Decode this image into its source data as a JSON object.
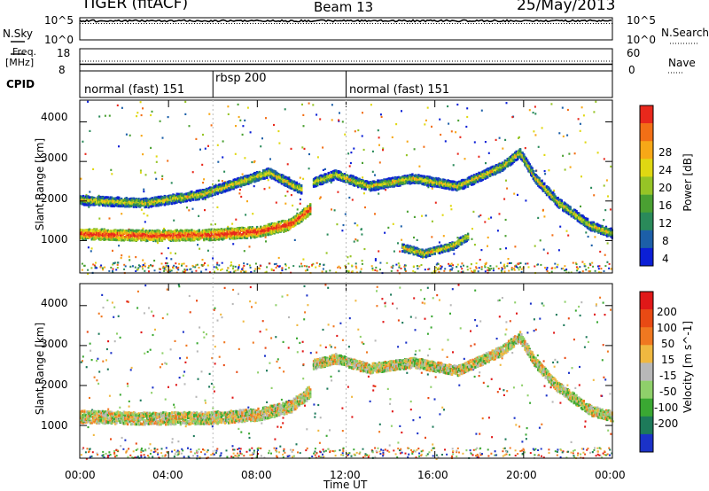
{
  "header": {
    "station": "TIGER (fitACF)",
    "beam": "Beam 13",
    "date": "25/May/2013"
  },
  "panels": {
    "nsky": {
      "label": "N.Sky",
      "ticks": [
        "10^5",
        "10^0"
      ]
    },
    "nsearch": {
      "label": "N.Search",
      "ticks": [
        "10^5",
        "10^0"
      ]
    },
    "freq": {
      "label_top": "Freq.",
      "label_unit": "[MHz]",
      "ticks": [
        "18",
        "8"
      ]
    },
    "nave": {
      "label": "Nave",
      "ticks": [
        "60",
        "0"
      ]
    },
    "cpid": {
      "label": "CPID",
      "segments": [
        {
          "text": "normal (fast) 151",
          "start": "00:00"
        },
        {
          "text": "rbsp 200",
          "start": "06:00"
        },
        {
          "text": "normal (fast) 151",
          "start": "12:00"
        }
      ]
    }
  },
  "chart_data": [
    {
      "type": "heatmap",
      "quantity": "Power",
      "ylabel": "Slant Range [km]",
      "ylim": [
        180,
        4550
      ],
      "yticks": [
        1000,
        2000,
        3000,
        4000
      ],
      "xlim": [
        "00:00",
        "24:00"
      ],
      "colorbar": {
        "label": "Power [dB]",
        "ticks": [
          "28",
          "24",
          "20",
          "16",
          "12",
          "8",
          "4"
        ],
        "colors": [
          "#0b1fd6",
          "#1c5fa8",
          "#2a8a5a",
          "#4aa032",
          "#96c426",
          "#e0d812",
          "#f7a817",
          "#f26f16",
          "#e8281c"
        ]
      },
      "bands": [
        {
          "t": [
            0.0,
            3.0,
            6.0,
            8.0,
            9.5,
            10.4
          ],
          "r": [
            1200,
            1150,
            1180,
            1250,
            1450,
            1850
          ],
          "w": 130,
          "level": 0.7
        },
        {
          "t": [
            0.0,
            3.0,
            5.5,
            8.5,
            10.0
          ],
          "r": [
            2050,
            1980,
            2200,
            2750,
            2300
          ],
          "w": 110,
          "level": 0.35
        },
        {
          "t": [
            10.5,
            11.5,
            13.0,
            15.0,
            17.0,
            19.0,
            19.8,
            20.5,
            21.5,
            23.0,
            24.0
          ],
          "r": [
            2500,
            2700,
            2400,
            2600,
            2400,
            2900,
            3250,
            2600,
            2000,
            1400,
            1200
          ],
          "w": 110,
          "level": 0.35
        },
        {
          "t": [
            14.5,
            15.5,
            16.8,
            17.5
          ],
          "r": [
            850,
            700,
            900,
            1150
          ],
          "w": 90,
          "level": 0.4
        }
      ]
    },
    {
      "type": "heatmap",
      "quantity": "Velocity",
      "ylabel": "Slant Range [km]",
      "ylim": [
        180,
        4550
      ],
      "yticks": [
        1000,
        2000,
        3000,
        4000
      ],
      "xlim": [
        "00:00",
        "24:00"
      ],
      "xticks": [
        "00:00",
        "04:00",
        "08:00",
        "12:00",
        "16:00",
        "20:00",
        "00:00"
      ],
      "xlabel": "Time UT",
      "colorbar": {
        "label": "Velocity [m s^-1]",
        "ticks": [
          "200",
          "100",
          "50",
          "15",
          "-15",
          "-50",
          "-100",
          "-200"
        ],
        "colors": [
          "#1b32c8",
          "#1d7a5a",
          "#3aa832",
          "#8fd06a",
          "#b8b8b8",
          "#f0b840",
          "#f07820",
          "#e84a14",
          "#e01818"
        ]
      },
      "bands": [
        {
          "t": [
            0.0,
            3.0,
            6.0,
            8.0,
            9.5,
            10.4
          ],
          "r": [
            1250,
            1200,
            1220,
            1300,
            1500,
            1900
          ],
          "w": 150,
          "level": 0.5
        },
        {
          "t": [
            10.5,
            11.5,
            13.0,
            15.0,
            17.0,
            19.0,
            19.8,
            20.5,
            21.5,
            23.0,
            24.0
          ],
          "r": [
            2550,
            2700,
            2450,
            2600,
            2400,
            2900,
            3250,
            2600,
            2000,
            1400,
            1250
          ],
          "w": 120,
          "level": 0.48
        }
      ]
    }
  ]
}
